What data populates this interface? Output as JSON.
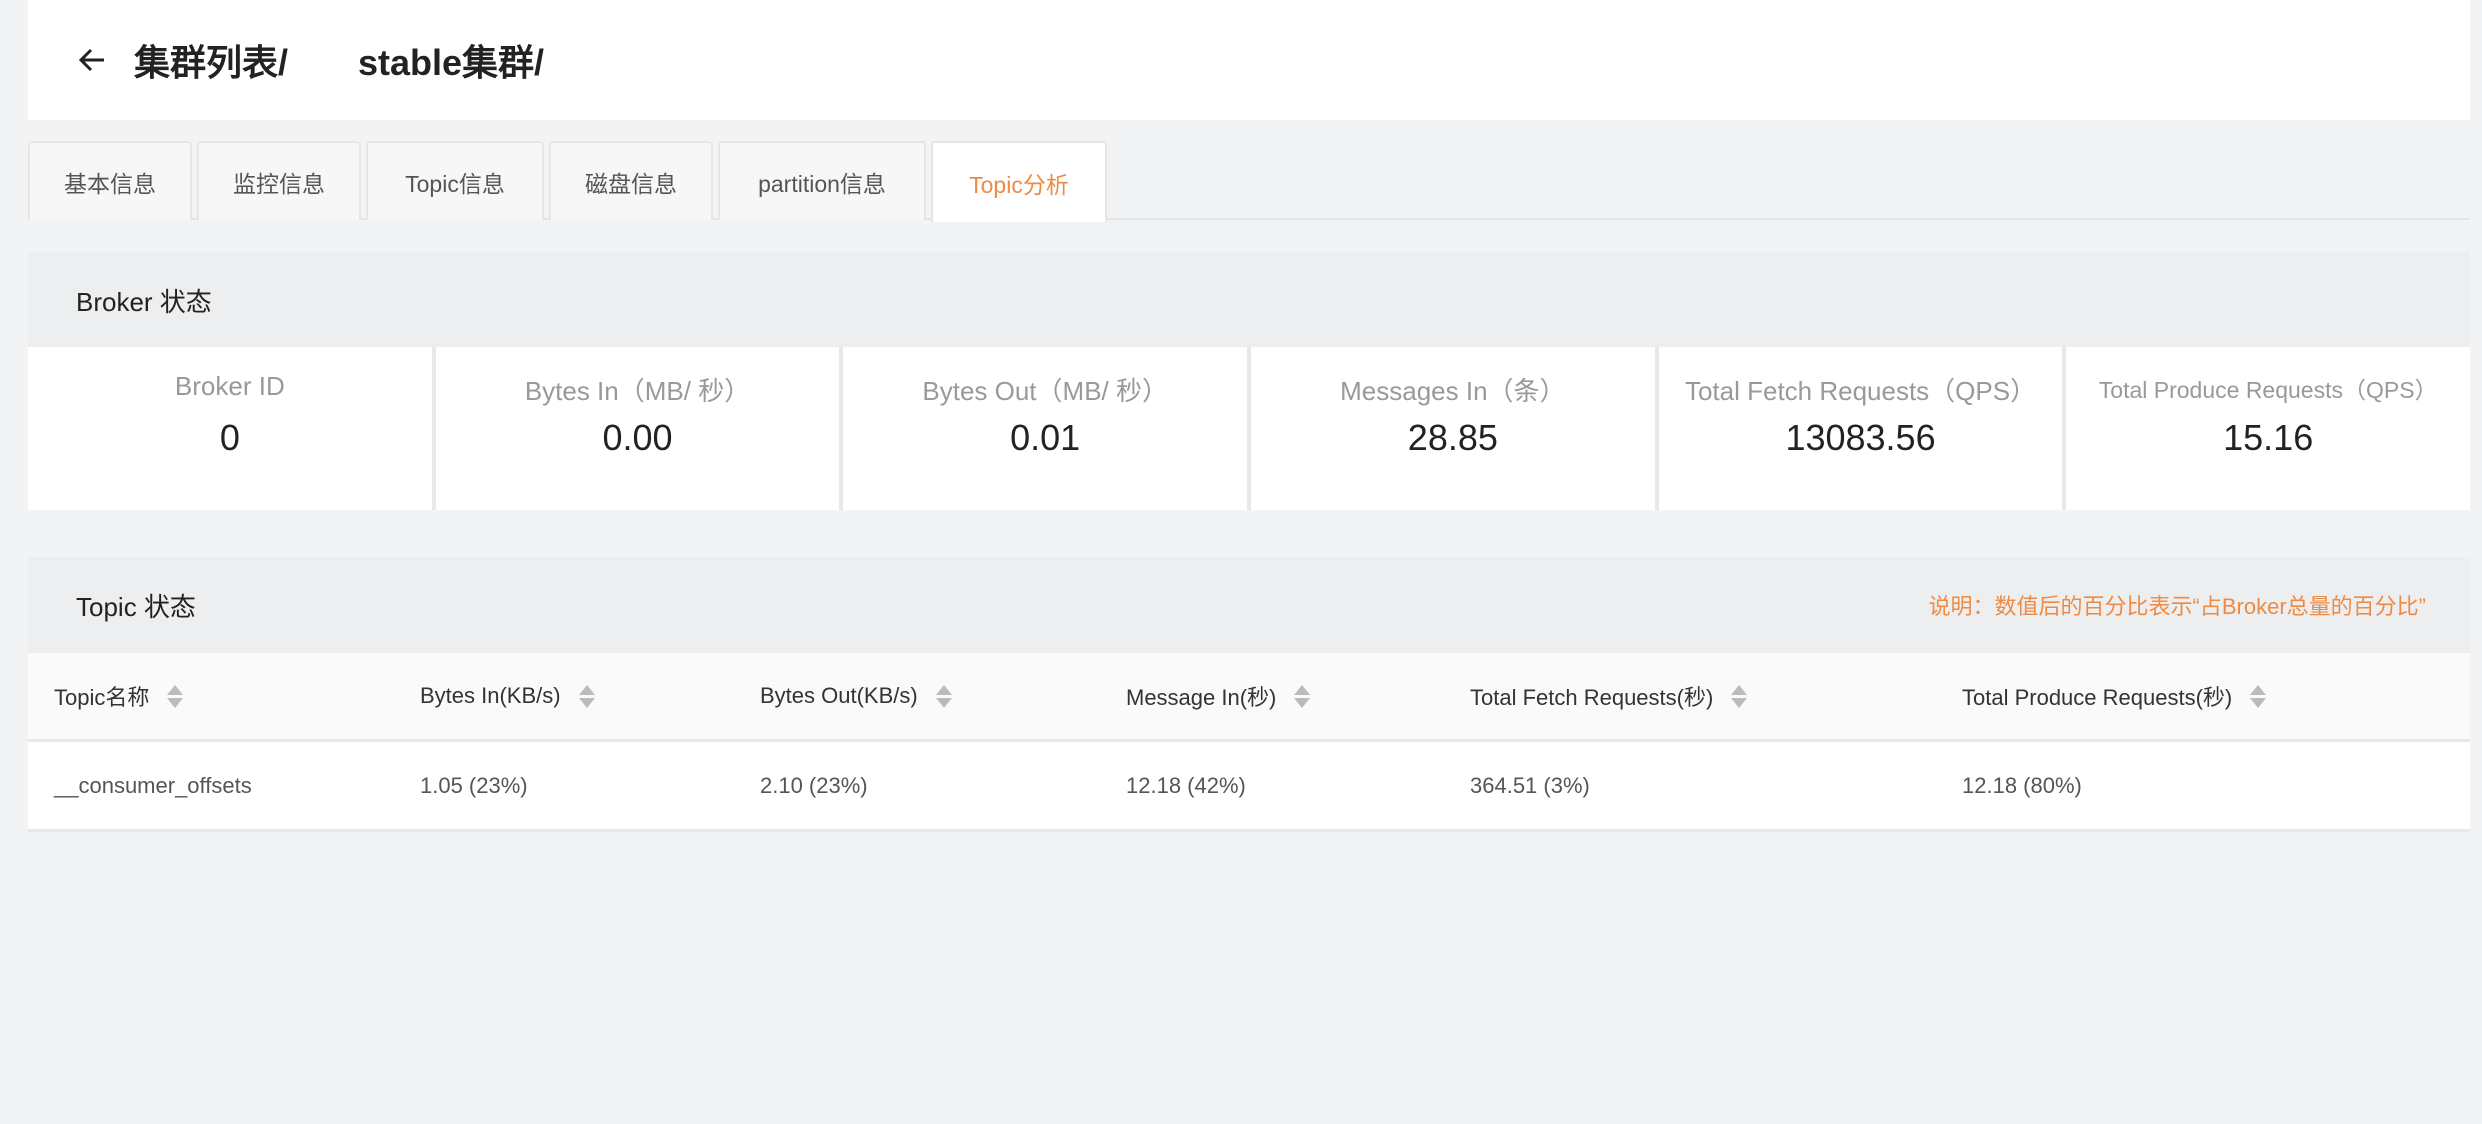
{
  "header": {
    "crumbs": [
      "集群列表/",
      "stable集群/"
    ]
  },
  "tabs": [
    {
      "label": "基本信息",
      "active": false
    },
    {
      "label": "监控信息",
      "active": false
    },
    {
      "label": "Topic信息",
      "active": false
    },
    {
      "label": "磁盘信息",
      "active": false
    },
    {
      "label": "partition信息",
      "active": false
    },
    {
      "label": "Topic分析",
      "active": true
    }
  ],
  "broker": {
    "title": "Broker 状态",
    "cards": [
      {
        "label": "Broker ID",
        "value": "0"
      },
      {
        "label": "Bytes In（MB/ 秒）",
        "value": "0.00"
      },
      {
        "label": "Bytes Out（MB/ 秒）",
        "value": "0.01"
      },
      {
        "label": "Messages In（条）",
        "value": "28.85"
      },
      {
        "label": "Total Fetch Requests（QPS）",
        "value": "13083.56"
      },
      {
        "label": "Total Produce Requests（QPS）",
        "value": "15.16"
      }
    ]
  },
  "topic": {
    "title": "Topic 状态",
    "note": "说明：数值后的百分比表示“占Broker总量的百分比”",
    "columns": [
      "Topic名称",
      "Bytes In(KB/s)",
      "Bytes Out(KB/s)",
      "Message In(秒)",
      "Total Fetch Requests(秒)",
      "Total Produce Requests(秒)"
    ],
    "rows": [
      [
        "__consumer_offsets",
        "1.05 (23%)",
        "2.10 (23%)",
        "12.18 (42%)",
        "364.51 (3%)",
        "12.18 (80%)"
      ]
    ]
  },
  "colors": {
    "accent": "#ef8a43"
  }
}
